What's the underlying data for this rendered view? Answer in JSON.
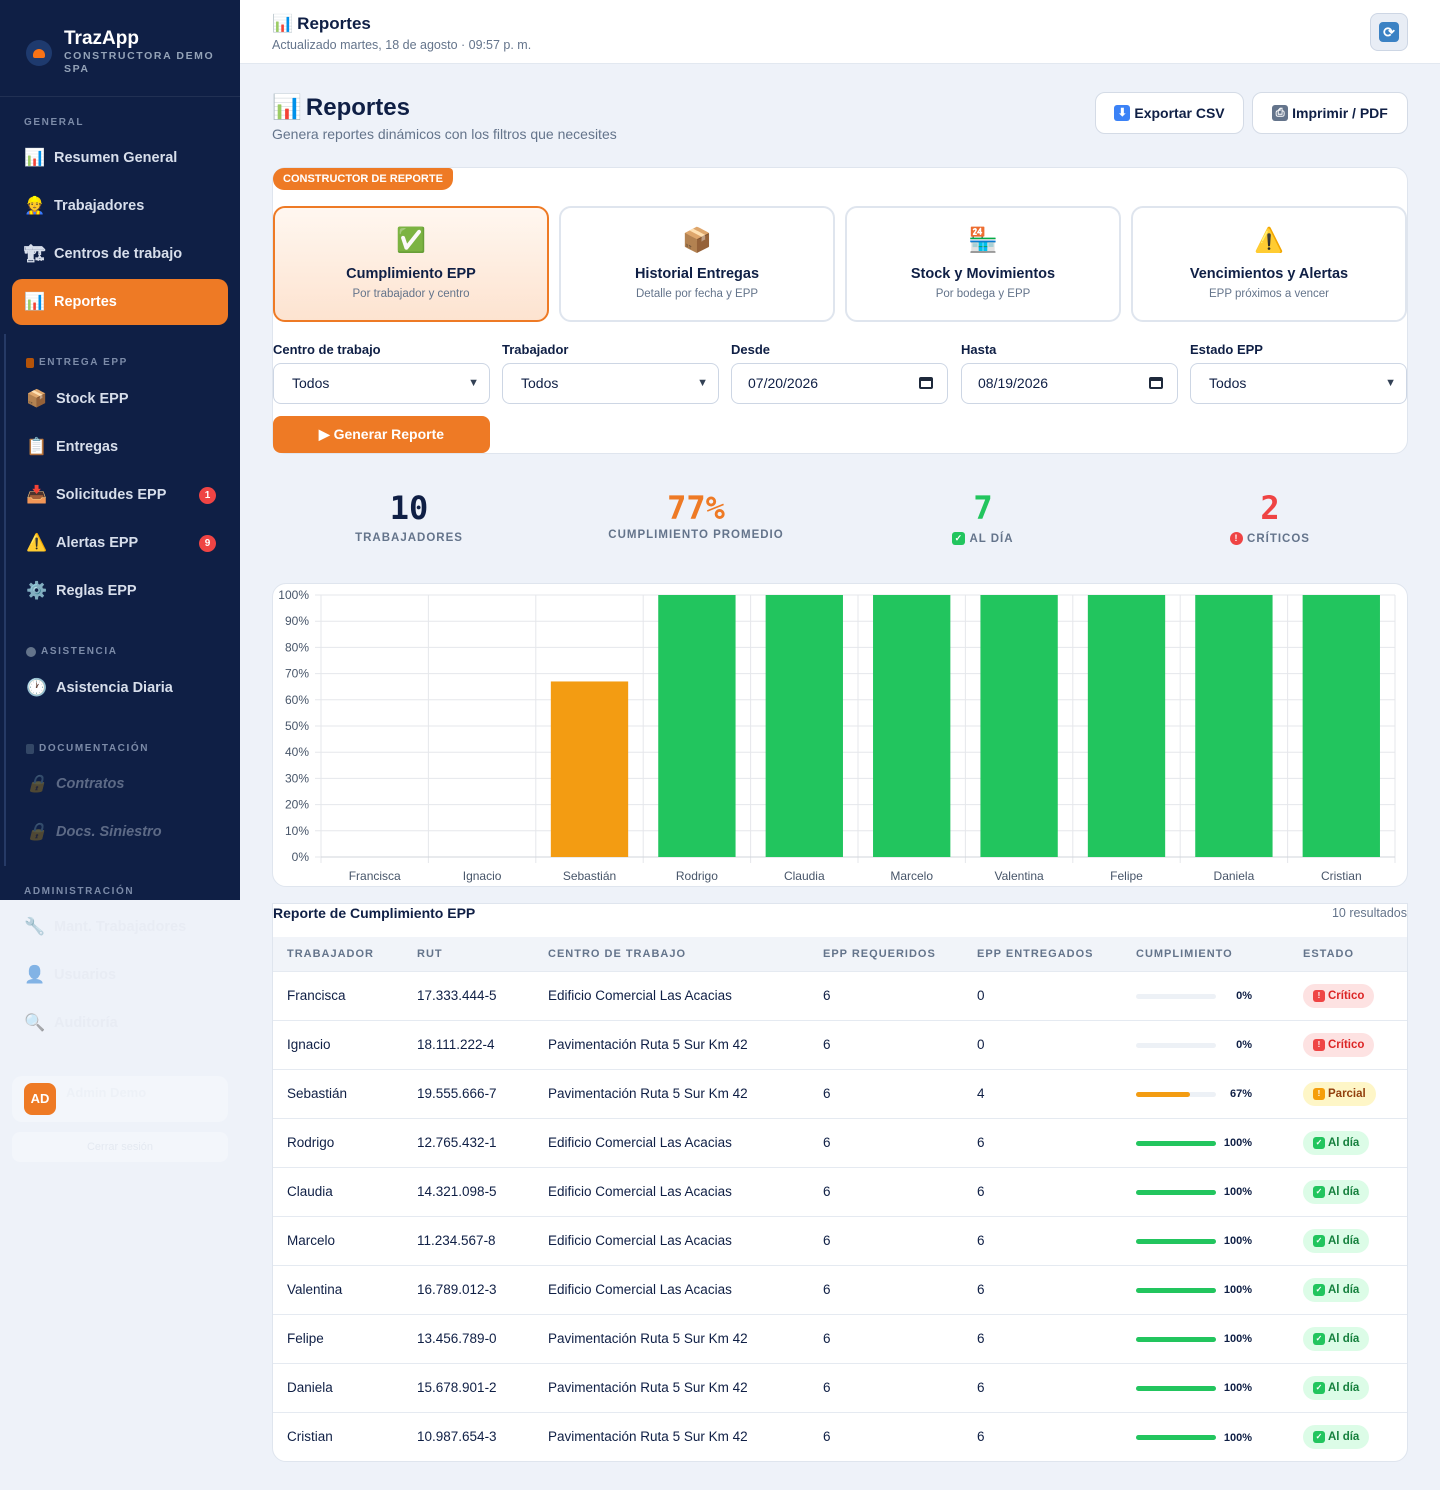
{
  "sidebar": {
    "brand": "TrazApp",
    "company": "CONSTRUCTORA DEMO SPA",
    "sections": {
      "general": "GENERAL",
      "entrega": "ENTREGA EPP",
      "asistencia": "ASISTENCIA",
      "documentacion": "DOCUMENTACIÓN",
      "administracion": "ADMINISTRACIÓN"
    },
    "items": {
      "resumen": "Resumen General",
      "trabajadores": "Trabajadores",
      "centros": "Centros de trabajo",
      "reportes": "Reportes",
      "stock": "Stock EPP",
      "entregas": "Entregas",
      "solicitudes": "Solicitudes EPP",
      "alertas": "Alertas EPP",
      "reglas": "Reglas EPP",
      "asistencia": "Asistencia Diaria",
      "contratos": "Contratos",
      "docs": "Docs. Siniestro",
      "mant": "Mant. Trabajadores",
      "usuarios": "Usuarios",
      "auditoria": "Auditoría"
    },
    "badges": {
      "solicitudes": "1",
      "alertas": "9"
    },
    "user": {
      "initials": "AD",
      "name": "Admin Demo"
    },
    "logout": "Cerrar sesión"
  },
  "topbar": {
    "title": "Reportes",
    "updated": "Actualizado martes, 18 de agosto · 09:57 p. m."
  },
  "header": {
    "title": "Reportes",
    "subtitle": "Genera reportes dinámicos con los filtros que necesites",
    "export_csv": "Exportar CSV",
    "print_pdf": "Imprimir / PDF"
  },
  "builder": {
    "label": "CONSTRUCTOR DE REPORTE",
    "cards": [
      {
        "title": "Cumplimiento EPP",
        "sub": "Por trabajador y centro",
        "icon": "check-icon"
      },
      {
        "title": "Historial Entregas",
        "sub": "Detalle por fecha y EPP",
        "icon": "package-icon"
      },
      {
        "title": "Stock y Movimientos",
        "sub": "Por bodega y EPP",
        "icon": "warehouse-icon"
      },
      {
        "title": "Vencimientos y Alertas",
        "sub": "EPP próximos a vencer",
        "icon": "warning-icon"
      }
    ],
    "filters": {
      "centro_label": "Centro de trabajo",
      "centro_value": "Todos",
      "trabajador_label": "Trabajador",
      "trabajador_value": "Todos",
      "desde_label": "Desde",
      "desde_value": "07/20/2026",
      "hasta_label": "Hasta",
      "hasta_value": "08/19/2026",
      "estado_label": "Estado EPP",
      "estado_value": "Todos"
    },
    "generate": "▶ Generar Reporte"
  },
  "stats": {
    "trabajadores": {
      "value": "10",
      "label": "TRABAJADORES"
    },
    "cumplimiento": {
      "value": "77%",
      "label": "CUMPLIMIENTO PROMEDIO"
    },
    "al_dia": {
      "value": "7",
      "label": "AL DÍA"
    },
    "criticos": {
      "value": "2",
      "label": "CRÍTICOS"
    }
  },
  "colors": {
    "accent": "#ee7a25",
    "navy": "#0f1f45",
    "green": "#22c55e",
    "amber": "#f39c12",
    "red": "#ef4444"
  },
  "chart_data": {
    "type": "bar",
    "categories": [
      "Francisca",
      "Ignacio",
      "Sebastián",
      "Rodrigo",
      "Claudia",
      "Marcelo",
      "Valentina",
      "Felipe",
      "Daniela",
      "Cristian"
    ],
    "values": [
      0,
      0,
      67,
      100,
      100,
      100,
      100,
      100,
      100,
      100
    ],
    "ylim": [
      0,
      100
    ],
    "yticks": [
      "0%",
      "10%",
      "20%",
      "30%",
      "40%",
      "50%",
      "60%",
      "70%",
      "80%",
      "90%",
      "100%"
    ],
    "grid": true,
    "bar_colors": [
      "#22c55e",
      "#22c55e",
      "#f39c12",
      "#22c55e",
      "#22c55e",
      "#22c55e",
      "#22c55e",
      "#22c55e",
      "#22c55e",
      "#22c55e"
    ]
  },
  "table": {
    "title": "Reporte de Cumplimiento EPP",
    "count": "10 resultados",
    "headers": [
      "TRABAJADOR",
      "RUT",
      "CENTRO DE TRABAJO",
      "EPP REQUERIDOS",
      "EPP ENTREGADOS",
      "CUMPLIMIENTO",
      "ESTADO"
    ],
    "rows": [
      {
        "name": "Francisca",
        "rut": "17.333.444-5",
        "centro": "Edificio Comercial Las Acacias",
        "req": "6",
        "ent": "0",
        "pct": 0,
        "pct_label": "0%",
        "estado": "Crítico",
        "kind": "crit"
      },
      {
        "name": "Ignacio",
        "rut": "18.111.222-4",
        "centro": "Pavimentación Ruta 5 Sur Km 42",
        "req": "6",
        "ent": "0",
        "pct": 0,
        "pct_label": "0%",
        "estado": "Crítico",
        "kind": "crit"
      },
      {
        "name": "Sebastián",
        "rut": "19.555.666-7",
        "centro": "Pavimentación Ruta 5 Sur Km 42",
        "req": "6",
        "ent": "4",
        "pct": 67,
        "pct_label": "67%",
        "estado": "Parcial",
        "kind": "par"
      },
      {
        "name": "Rodrigo",
        "rut": "12.765.432-1",
        "centro": "Edificio Comercial Las Acacias",
        "req": "6",
        "ent": "6",
        "pct": 100,
        "pct_label": "100%",
        "estado": "Al día",
        "kind": "ok"
      },
      {
        "name": "Claudia",
        "rut": "14.321.098-5",
        "centro": "Edificio Comercial Las Acacias",
        "req": "6",
        "ent": "6",
        "pct": 100,
        "pct_label": "100%",
        "estado": "Al día",
        "kind": "ok"
      },
      {
        "name": "Marcelo",
        "rut": "11.234.567-8",
        "centro": "Edificio Comercial Las Acacias",
        "req": "6",
        "ent": "6",
        "pct": 100,
        "pct_label": "100%",
        "estado": "Al día",
        "kind": "ok"
      },
      {
        "name": "Valentina",
        "rut": "16.789.012-3",
        "centro": "Edificio Comercial Las Acacias",
        "req": "6",
        "ent": "6",
        "pct": 100,
        "pct_label": "100%",
        "estado": "Al día",
        "kind": "ok"
      },
      {
        "name": "Felipe",
        "rut": "13.456.789-0",
        "centro": "Pavimentación Ruta 5 Sur Km 42",
        "req": "6",
        "ent": "6",
        "pct": 100,
        "pct_label": "100%",
        "estado": "Al día",
        "kind": "ok"
      },
      {
        "name": "Daniela",
        "rut": "15.678.901-2",
        "centro": "Pavimentación Ruta 5 Sur Km 42",
        "req": "6",
        "ent": "6",
        "pct": 100,
        "pct_label": "100%",
        "estado": "Al día",
        "kind": "ok"
      },
      {
        "name": "Cristian",
        "rut": "10.987.654-3",
        "centro": "Pavimentación Ruta 5 Sur Km 42",
        "req": "6",
        "ent": "6",
        "pct": 100,
        "pct_label": "100%",
        "estado": "Al día",
        "kind": "ok"
      }
    ]
  }
}
